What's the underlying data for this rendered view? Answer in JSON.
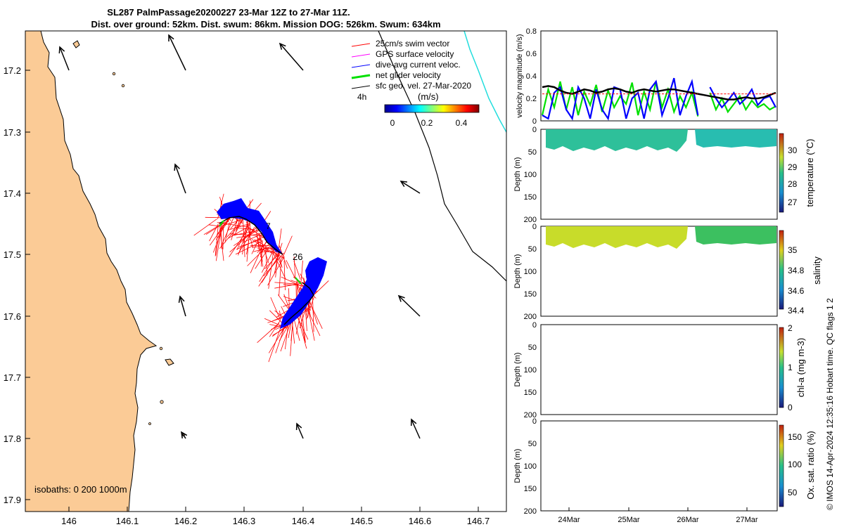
{
  "title": {
    "line1": "SL287 PalmPassage20200227 23-Mar 12Z to 27-Mar 11Z.",
    "line2": "Dist. over ground: 52km. Dist. swum: 86km. Mission DOG: 526km. Swum: 634km"
  },
  "map": {
    "x_ticks": [
      "146",
      "146.1",
      "146.2",
      "146.3",
      "146.4",
      "146.5",
      "146.6",
      "146.7"
    ],
    "y_ticks": [
      "17.2",
      "17.3",
      "17.4",
      "17.5",
      "17.6",
      "17.7",
      "17.8",
      "17.9"
    ],
    "xlim": [
      145.96,
      146.75
    ],
    "ylim": [
      17.15,
      17.92
    ],
    "legend": [
      {
        "label": "25cm/s swim vector",
        "color": "#ff0000"
      },
      {
        "label": "GPS surface velocity",
        "color": "#ff00ff"
      },
      {
        "label": "dive-avg current veloc.",
        "color": "#0000ff"
      },
      {
        "label": "net glider velocity",
        "color": "#00e000"
      },
      {
        "label": "sfc geo. vel. 27-Mar-2020",
        "color": "#000000"
      }
    ],
    "time_label": "4h",
    "colorbar_label": "(m/s)",
    "colorbar_ticks": [
      "0",
      "0.2",
      "0.4"
    ],
    "track_labels": [
      "7",
      "26"
    ],
    "isobaths_text": "isobaths: 0   200  1000m",
    "land_color": "#fbcb96",
    "shelf_line_color": "#22dddd"
  },
  "footer": {
    "credit": "© IMOS 14-Apr-2024 12:35:16 Hobart time. QC flags 1  2"
  },
  "chart_data": [
    {
      "type": "line",
      "ylabel": "velocity magnitude (m/s)",
      "ylim": [
        0,
        0.8
      ],
      "yticks": [
        "0",
        "0.2",
        "0.4",
        "0.6",
        "0.8"
      ],
      "series": [
        {
          "color": "#00e000",
          "values": [
            0.05,
            0.28,
            0.12,
            0.35,
            0.1,
            0.3,
            0.05,
            0.26,
            0.14,
            0.32,
            0.08,
            0.27,
            0.12,
            0.22,
            0.15,
            0.34,
            0.05,
            0.26,
            0.1,
            0.35,
            0.12,
            0.28,
            0.08,
            0.22,
            0.12,
            0.25,
            0.04,
            null,
            0.25,
            0.1,
            0.2,
            0.08,
            0.15,
            0.22,
            0.1,
            0.18,
            0.12,
            0.15,
            0.1,
            0.13
          ]
        },
        {
          "color": "#0000ff",
          "values": [
            0.05,
            0.02,
            0.25,
            0.3,
            0.1,
            0.02,
            0.3,
            0.2,
            0.02,
            0.28,
            0.1,
            0.02,
            0.3,
            0.28,
            0.02,
            0.2,
            0.25,
            0.02,
            0.28,
            0.35,
            0.05,
            0.2,
            0.38,
            0.05,
            0.22,
            0.35,
            0.05,
            null,
            0.3,
            0.2,
            0.12,
            0.18,
            0.25,
            0.15,
            0.2,
            0.28,
            0.14,
            0.2,
            0.22,
            0.12
          ]
        },
        {
          "color": "#000000",
          "values": [
            0.3,
            0.31,
            0.3,
            0.27,
            0.25,
            0.24,
            0.26,
            0.28,
            0.27,
            0.25,
            0.26,
            0.28,
            0.29,
            0.28,
            0.26,
            0.25,
            0.27,
            0.28,
            0.27,
            0.26,
            0.27,
            0.28,
            0.28,
            0.27,
            0.26,
            0.25,
            0.24,
            0.23,
            0.22,
            0.21,
            0.2,
            0.19,
            0.19,
            0.2,
            0.21,
            0.2,
            0.2,
            0.21,
            0.23,
            0.25
          ]
        },
        {
          "color": "#ff0000",
          "values": [
            0.24,
            0.24,
            0.24,
            0.24,
            0.24,
            0.24,
            0.24,
            0.24,
            0.24,
            0.24,
            0.24,
            0.24,
            0.24,
            0.24,
            0.24,
            0.24,
            0.24,
            0.24,
            0.24,
            0.24,
            0.24,
            0.24,
            0.24,
            0.24,
            0.24,
            0.24,
            0.24,
            null,
            0.24,
            0.24,
            0.24,
            0.24,
            0.24,
            0.24,
            0.24,
            0.24,
            0.24,
            0.24,
            0.24,
            0.24
          ]
        }
      ]
    },
    {
      "type": "heatmap",
      "ylabel": "Depth (m)",
      "yticks": [
        "0",
        "50",
        "100",
        "150",
        "200"
      ],
      "colorbar_label": "temperature (°C)",
      "colorbar_ticks": [
        "27",
        "28",
        "29",
        "30"
      ],
      "data_color": "#2ec09a"
    },
    {
      "type": "heatmap",
      "ylabel": "Depth (m)",
      "yticks": [
        "0",
        "50",
        "100",
        "150",
        "200"
      ],
      "colorbar_label": "salinity",
      "colorbar_ticks": [
        "34.4",
        "34.6",
        "34.8",
        "35"
      ],
      "data_color": "#c8dc2a"
    },
    {
      "type": "heatmap",
      "ylabel": "Depth (m)",
      "yticks": [
        "0",
        "50",
        "100",
        "150",
        "200"
      ],
      "colorbar_label": "chl-a (mg m-3)",
      "colorbar_ticks": [
        "0",
        "1",
        "2"
      ]
    },
    {
      "type": "heatmap",
      "ylabel": "Depth (m)",
      "yticks": [
        "0",
        "50",
        "100",
        "150",
        "200"
      ],
      "colorbar_label": "Ox. sat. ratio (%)",
      "colorbar_ticks": [
        "50",
        "100",
        "150"
      ],
      "x_ticks": [
        "24Mar",
        "25Mar",
        "26Mar",
        "27Mar"
      ]
    }
  ]
}
